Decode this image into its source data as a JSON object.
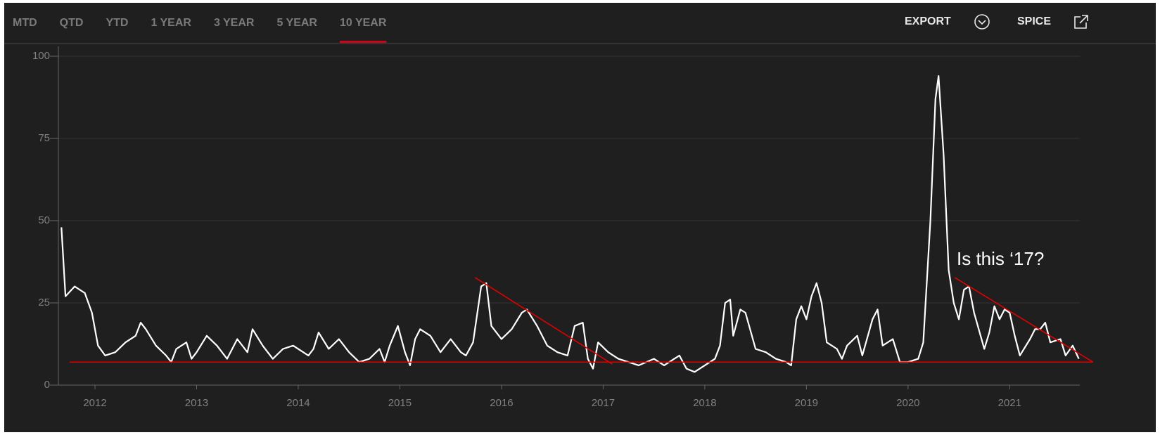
{
  "tabs": [
    "MTD",
    "QTD",
    "YTD",
    "1 YEAR",
    "3 YEAR",
    "5 YEAR",
    "10 YEAR"
  ],
  "active_tab": 6,
  "actions": [
    "EXPORT",
    "SPICE"
  ],
  "chart_data": {
    "type": "line",
    "annotation": "Is this ‘17?",
    "x": [
      2011.67,
      2011.71,
      2011.8,
      2011.9,
      2011.97,
      2012.03,
      2012.1,
      2012.2,
      2012.3,
      2012.4,
      2012.45,
      2012.5,
      2012.6,
      2012.7,
      2012.75,
      2012.8,
      2012.9,
      2012.95,
      2013.0,
      2013.1,
      2013.2,
      2013.3,
      2013.4,
      2013.5,
      2013.55,
      2013.65,
      2013.75,
      2013.85,
      2013.95,
      2014.1,
      2014.15,
      2014.2,
      2014.3,
      2014.4,
      2014.5,
      2014.6,
      2014.7,
      2014.8,
      2014.85,
      2014.9,
      2014.98,
      2015.05,
      2015.1,
      2015.15,
      2015.2,
      2015.3,
      2015.4,
      2015.5,
      2015.6,
      2015.65,
      2015.72,
      2015.8,
      2015.85,
      2015.9,
      2016.0,
      2016.1,
      2016.2,
      2016.25,
      2016.35,
      2016.45,
      2016.55,
      2016.65,
      2016.72,
      2016.8,
      2016.85,
      2016.9,
      2016.95,
      2017.05,
      2017.15,
      2017.25,
      2017.35,
      2017.5,
      2017.6,
      2017.7,
      2017.75,
      2017.82,
      2017.9,
      2018.0,
      2018.1,
      2018.15,
      2018.2,
      2018.25,
      2018.28,
      2018.35,
      2018.4,
      2018.5,
      2018.6,
      2018.7,
      2018.8,
      2018.85,
      2018.9,
      2018.95,
      2019.0,
      2019.05,
      2019.1,
      2019.15,
      2019.2,
      2019.3,
      2019.35,
      2019.4,
      2019.5,
      2019.55,
      2019.65,
      2019.7,
      2019.75,
      2019.85,
      2019.92,
      2020.0,
      2020.1,
      2020.15,
      2020.22,
      2020.27,
      2020.3,
      2020.35,
      2020.4,
      2020.45,
      2020.5,
      2020.55,
      2020.6,
      2020.65,
      2020.75,
      2020.8,
      2020.85,
      2020.9,
      2020.95,
      2021.0,
      2021.05,
      2021.1,
      2021.2,
      2021.25,
      2021.3,
      2021.35,
      2021.4,
      2021.5,
      2021.55,
      2021.62,
      2021.68
    ],
    "series": [
      {
        "color": "#ffffff",
        "values": [
          48,
          27,
          30,
          28,
          22,
          12,
          9,
          10,
          13,
          15,
          19,
          17,
          12,
          9,
          7,
          11,
          13,
          8,
          10,
          15,
          12,
          8,
          14,
          10,
          17,
          12,
          8,
          11,
          12,
          9,
          11,
          16,
          11,
          14,
          10,
          7,
          8,
          11,
          7,
          12,
          18,
          10,
          6,
          14,
          17,
          15,
          10,
          14,
          10,
          9,
          13,
          30,
          31,
          18,
          14,
          17,
          22,
          23,
          18,
          12,
          10,
          9,
          18,
          19,
          8,
          5,
          13,
          10,
          8,
          7,
          6,
          8,
          6,
          8,
          9,
          5,
          4,
          6,
          8,
          12,
          25,
          26,
          15,
          23,
          22,
          11,
          10,
          8,
          7,
          6,
          20,
          24,
          20,
          27,
          31,
          25,
          13,
          11,
          8,
          12,
          15,
          9,
          20,
          23,
          12,
          14,
          7,
          7,
          8,
          13,
          50,
          87,
          94,
          70,
          35,
          25,
          20,
          29,
          30,
          22,
          11,
          16,
          24,
          20,
          23,
          22,
          15,
          9,
          14,
          17,
          17,
          19,
          13,
          14,
          9,
          12,
          8
        ]
      }
    ],
    "annotation_lines": [
      {
        "color": "#e00000",
        "x": [
          2011.75,
          2021.82
        ],
        "y": [
          7,
          7
        ]
      },
      {
        "color": "#e00000",
        "x": [
          2015.74,
          2017.09
        ],
        "y": [
          32.7,
          6.4
        ]
      },
      {
        "color": "#e00000",
        "x": [
          2020.46,
          2021.82
        ],
        "y": [
          32.7,
          7
        ]
      }
    ],
    "xlim": [
      2011.64,
      2021.69
    ],
    "xticks": [
      2012,
      2013,
      2014,
      2015,
      2016,
      2017,
      2018,
      2019,
      2020,
      2021
    ],
    "ylim": [
      0,
      100
    ],
    "yticks": [
      0,
      25,
      50,
      75,
      100
    ],
    "grid": true
  }
}
